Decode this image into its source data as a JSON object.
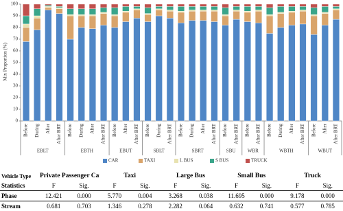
{
  "chart_data": {
    "type": "stacked_bar",
    "ylabel": "Mix Proportion (%)",
    "ylim": [
      0,
      100
    ],
    "yticks": [
      0,
      10,
      20,
      30,
      40,
      50,
      60,
      70,
      80,
      90,
      100
    ],
    "grid": false,
    "legend": "bottom",
    "groups": [
      {
        "name": "EBLT",
        "categories": [
          "Before",
          "During",
          "After",
          "After BRT"
        ]
      },
      {
        "name": "EBTH",
        "categories": [
          "Before",
          "During",
          "After",
          "After BRT"
        ]
      },
      {
        "name": "EBUT",
        "categories": [
          "Before",
          "After",
          "After BRT"
        ]
      },
      {
        "name": "SBLT",
        "categories": [
          "Before",
          "During",
          "After BRT"
        ]
      },
      {
        "name": "SBRT",
        "categories": [
          "Before",
          "During",
          "After",
          "After BRT"
        ]
      },
      {
        "name": "SBU",
        "categories": [
          "Before",
          "After BRT"
        ]
      },
      {
        "name": "WBR",
        "categories": [
          "Before",
          "After BRT"
        ]
      },
      {
        "name": "WBTH",
        "categories": [
          "Before",
          "During",
          "After",
          "After BRT"
        ]
      },
      {
        "name": "WBUT",
        "categories": [
          "Before",
          "After",
          "After BRT"
        ]
      }
    ],
    "series": [
      {
        "name": "CAR",
        "color": "#4f86c6",
        "values": [
          68,
          78,
          95,
          92,
          70,
          80,
          79,
          82,
          80,
          85,
          88,
          85,
          90,
          88,
          84,
          86,
          86,
          85,
          82,
          87,
          85,
          84,
          75,
          80,
          82,
          83,
          74,
          82,
          87
        ]
      },
      {
        "name": "TAXI",
        "color": "#d9a46a",
        "values": [
          12,
          10,
          2,
          4,
          20,
          10,
          11,
          10,
          10,
          8,
          7,
          6,
          5,
          6,
          9,
          8,
          8,
          9,
          8,
          7,
          8,
          10,
          15,
          12,
          11,
          11,
          16,
          10,
          8
        ]
      },
      {
        "name": "L BUS",
        "color": "#e8e2b0",
        "values": [
          3,
          2,
          1,
          1,
          1,
          1,
          1,
          1,
          1,
          1,
          1,
          1,
          1,
          1,
          1,
          1,
          1,
          1,
          1,
          1,
          1,
          1,
          1,
          1,
          1,
          1,
          1,
          1,
          1
        ]
      },
      {
        "name": "S BUS",
        "color": "#3aa58a",
        "values": [
          7,
          6,
          1,
          1,
          5,
          5,
          5,
          4,
          6,
          4,
          2,
          5,
          2,
          3,
          4,
          3,
          3,
          3,
          6,
          3,
          4,
          3,
          6,
          5,
          4,
          3,
          6,
          5,
          2
        ]
      },
      {
        "name": "TRUCK",
        "color": "#c0504d",
        "values": [
          10,
          4,
          1,
          2,
          4,
          4,
          4,
          3,
          3,
          2,
          2,
          3,
          2,
          2,
          2,
          2,
          2,
          2,
          3,
          2,
          2,
          2,
          3,
          2,
          2,
          2,
          3,
          2,
          2
        ]
      }
    ]
  },
  "table": {
    "header": [
      "Vehicle Type",
      "Private Passenger Car",
      "Taxi",
      "Large Bus",
      "Small Bus",
      "Truck"
    ],
    "subheader": [
      "Statistics",
      "F",
      "Sig.",
      "F",
      "Sig.",
      "F",
      "Sig.",
      "F",
      "Sig.",
      "F",
      "Sig."
    ],
    "rows": [
      [
        "Phase",
        "12.421",
        "0.000",
        "5.770",
        "0.004",
        "3.268",
        "0.038",
        "11.695",
        "0.000",
        "9.178",
        "0.000"
      ],
      [
        "Stream",
        "0.681",
        "0.703",
        "1.346",
        "0.278",
        "2.282",
        "0.064",
        "0.632",
        "0.741",
        "0.577",
        "0.785"
      ]
    ]
  }
}
